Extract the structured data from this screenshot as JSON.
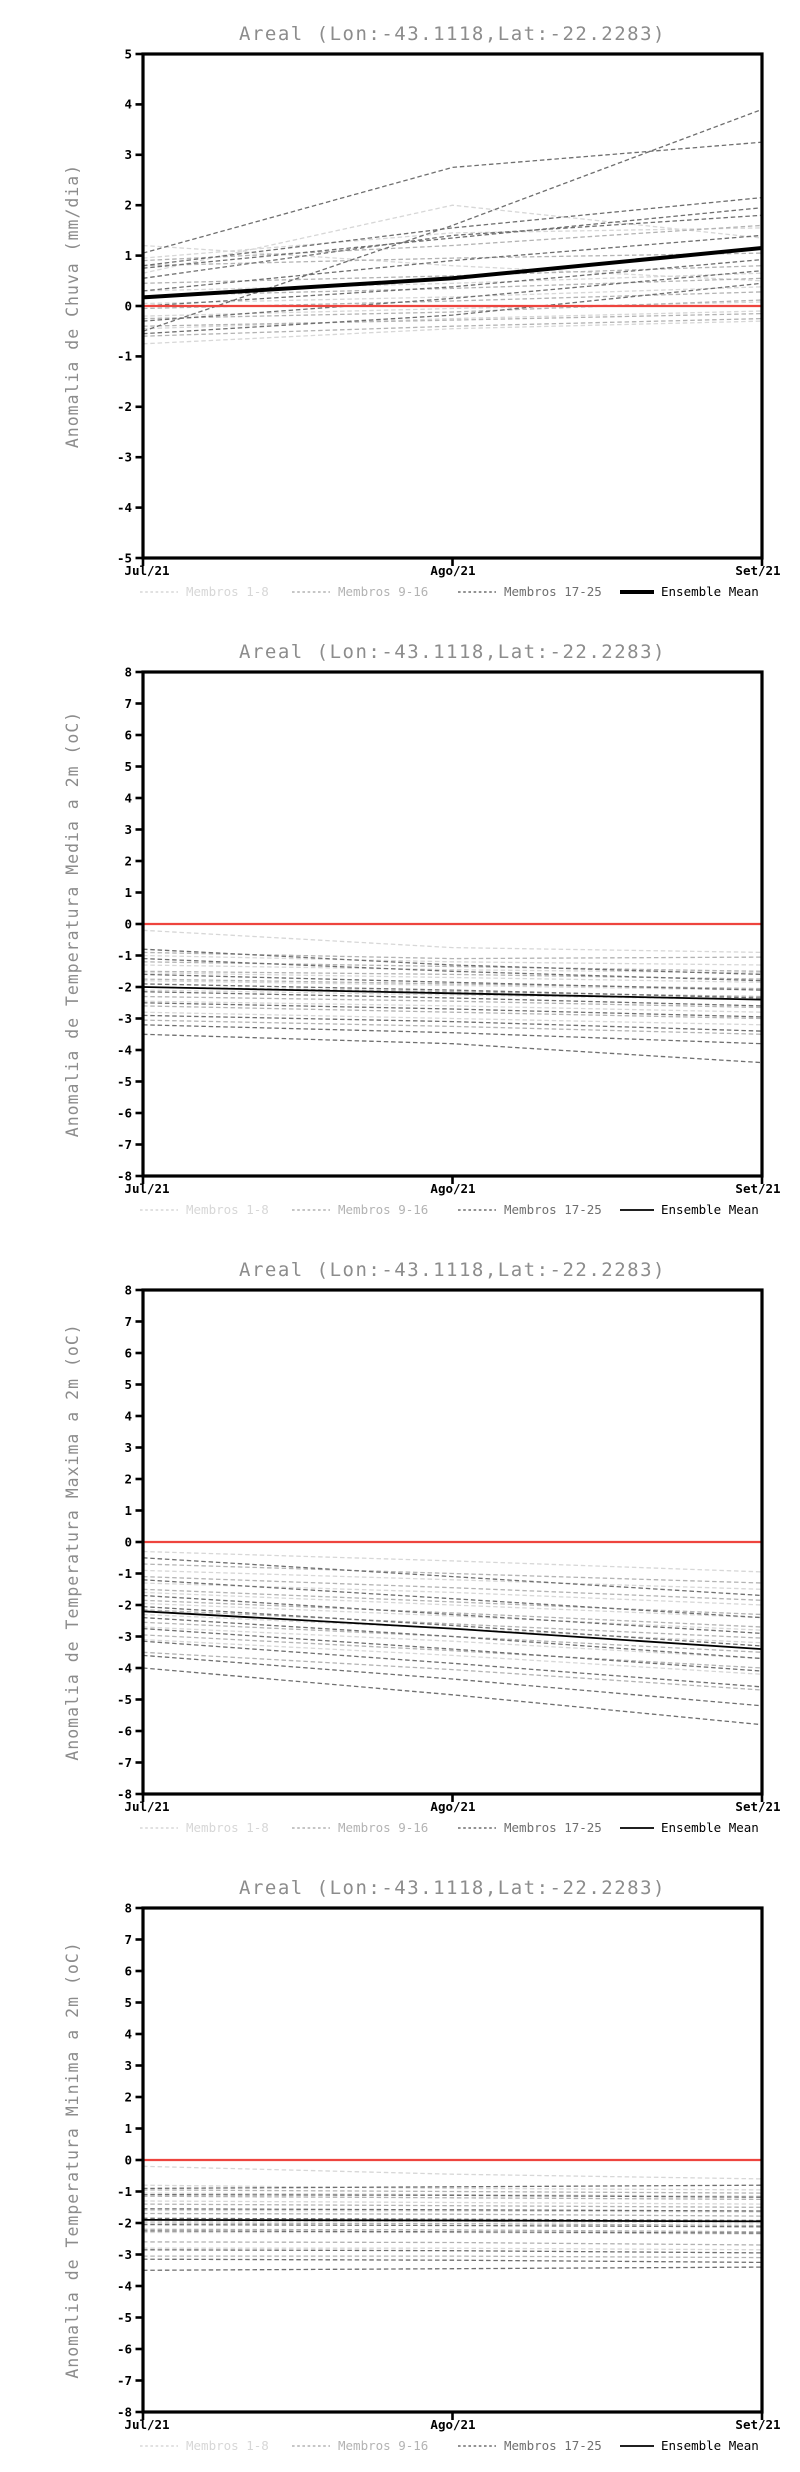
{
  "page": {
    "background": "#ffffff"
  },
  "colors": {
    "title_gray": "#8c8c8c",
    "axis_black": "#000000",
    "zero_line_red": "#ee443e",
    "group1_gray": "#d7d7d7",
    "group2_gray": "#b3b3b3",
    "group3_gray": "#6f6f6f",
    "ensemble_mean": "#000000"
  },
  "chart_data": [
    {
      "type": "line",
      "title": "Areal (Lon:-43.1118,Lat:-22.2283)",
      "ylabel": "Anomalia de Chuva (mm/dia)",
      "xlabel": "",
      "x_ticklabels": [
        "Jul/21",
        "Ago/21",
        "Set/21"
      ],
      "ylim": [
        -5,
        5
      ],
      "ytick_step": 1,
      "grid": false,
      "zero_line": true,
      "legend_position": "bottom",
      "mean_thick": true,
      "groups": [
        {
          "name": "Membros 1-8",
          "color": "#d7d7d7",
          "members": [
            [
              1.2,
              0.8,
              0.5
            ],
            [
              0.95,
              1.45,
              1.55
            ],
            [
              0.65,
              2.0,
              1.35
            ],
            [
              0.3,
              0.45,
              0.65
            ],
            [
              0.05,
              0.18,
              0.38
            ],
            [
              -0.2,
              -0.05,
              0.08
            ],
            [
              -0.45,
              -0.25,
              -0.1
            ],
            [
              -0.75,
              -0.45,
              -0.3
            ]
          ]
        },
        {
          "name": "Membros 9-16",
          "color": "#b3b3b3",
          "members": [
            [
              0.9,
              1.2,
              1.6
            ],
            [
              0.8,
              0.95,
              1.05
            ],
            [
              0.45,
              0.6,
              0.8
            ],
            [
              0.2,
              0.35,
              0.55
            ],
            [
              -0.05,
              0.1,
              0.28
            ],
            [
              -0.25,
              -0.12,
              0.12
            ],
            [
              -0.4,
              -0.28,
              -0.15
            ],
            [
              -0.6,
              -0.4,
              -0.25
            ]
          ]
        },
        {
          "name": "Membros 17-25",
          "color": "#6f6f6f",
          "members": [
            [
              1.05,
              2.75,
              3.25
            ],
            [
              -0.5,
              1.6,
              3.9
            ],
            [
              0.8,
              1.55,
              2.15
            ],
            [
              0.75,
              1.35,
              1.95
            ],
            [
              0.55,
              1.4,
              1.8
            ],
            [
              0.3,
              0.9,
              1.4
            ],
            [
              0.0,
              0.38,
              0.92
            ],
            [
              -0.3,
              0.15,
              0.7
            ],
            [
              -0.55,
              -0.18,
              0.45
            ]
          ]
        }
      ],
      "ensemble_mean": {
        "label": "Ensemble Mean",
        "color": "#000000",
        "values": [
          0.17,
          0.55,
          1.15
        ]
      }
    },
    {
      "type": "line",
      "title": "Areal (Lon:-43.1118,Lat:-22.2283)",
      "ylabel": "Anomalia de Temperatura Media a 2m (oC)",
      "xlabel": "",
      "x_ticklabels": [
        "Jul/21",
        "Ago/21",
        "Set/21"
      ],
      "ylim": [
        -8,
        8
      ],
      "ytick_step": 1,
      "grid": false,
      "zero_line": true,
      "legend_position": "bottom",
      "mean_thick": false,
      "groups": [
        {
          "name": "Membros 1-8",
          "color": "#d7d7d7",
          "members": [
            [
              -0.2,
              -0.75,
              -0.9
            ],
            [
              -1.0,
              -1.2,
              -1.3
            ],
            [
              -1.3,
              -1.45,
              -1.55
            ],
            [
              -1.55,
              -1.7,
              -1.85
            ],
            [
              -1.8,
              -1.95,
              -2.1
            ],
            [
              -2.1,
              -2.25,
              -2.4
            ],
            [
              -2.45,
              -2.6,
              -2.8
            ],
            [
              -2.8,
              -3.0,
              -3.2
            ]
          ]
        },
        {
          "name": "Membros 9-16",
          "color": "#b3b3b3",
          "members": [
            [
              -0.9,
              -1.1,
              -1.05
            ],
            [
              -1.2,
              -1.35,
              -1.5
            ],
            [
              -1.5,
              -1.6,
              -1.75
            ],
            [
              -1.75,
              -1.9,
              -2.05
            ],
            [
              -2.0,
              -2.15,
              -2.3
            ],
            [
              -2.3,
              -2.45,
              -2.65
            ],
            [
              -2.6,
              -2.8,
              -3.0
            ],
            [
              -3.05,
              -3.25,
              -3.5
            ]
          ]
        },
        {
          "name": "Membros 17-25",
          "color": "#6f6f6f",
          "members": [
            [
              -0.8,
              -1.3,
              -1.6
            ],
            [
              -1.1,
              -1.5,
              -1.8
            ],
            [
              -1.6,
              -1.85,
              -2.1
            ],
            [
              -1.9,
              -2.1,
              -2.35
            ],
            [
              -2.15,
              -2.35,
              -2.6
            ],
            [
              -2.5,
              -2.7,
              -2.95
            ],
            [
              -2.9,
              -3.1,
              -3.4
            ],
            [
              -3.2,
              -3.45,
              -3.8
            ],
            [
              -3.5,
              -3.8,
              -4.4
            ]
          ]
        }
      ],
      "ensemble_mean": {
        "label": "Ensemble Mean",
        "color": "#000000",
        "values": [
          -2.0,
          -2.2,
          -2.4
        ]
      }
    },
    {
      "type": "line",
      "title": "Areal (Lon:-43.1118,Lat:-22.2283)",
      "ylabel": "Anomalia de Temperatura Maxima a 2m (oC)",
      "xlabel": "",
      "x_ticklabels": [
        "Jul/21",
        "Ago/21",
        "Set/21"
      ],
      "ylim": [
        -8,
        8
      ],
      "ytick_step": 1,
      "grid": false,
      "zero_line": true,
      "legend_position": "bottom",
      "mean_thick": false,
      "groups": [
        {
          "name": "Membros 1-8",
          "color": "#d7d7d7",
          "members": [
            [
              -0.3,
              -0.6,
              -0.95
            ],
            [
              -0.9,
              -1.2,
              -1.5
            ],
            [
              -1.3,
              -1.6,
              -2.0
            ],
            [
              -1.6,
              -2.0,
              -2.4
            ],
            [
              -1.95,
              -2.35,
              -2.8
            ],
            [
              -2.3,
              -2.75,
              -3.2
            ],
            [
              -2.7,
              -3.15,
              -3.7
            ],
            [
              -3.1,
              -3.6,
              -4.2
            ]
          ]
        },
        {
          "name": "Membros 9-16",
          "color": "#b3b3b3",
          "members": [
            [
              -0.7,
              -1.0,
              -1.3
            ],
            [
              -1.1,
              -1.45,
              -1.85
            ],
            [
              -1.5,
              -1.9,
              -2.3
            ],
            [
              -1.85,
              -2.25,
              -2.7
            ],
            [
              -2.15,
              -2.6,
              -3.05
            ],
            [
              -2.55,
              -3.0,
              -3.5
            ],
            [
              -2.95,
              -3.45,
              -4.0
            ],
            [
              -3.5,
              -4.05,
              -4.7
            ]
          ]
        },
        {
          "name": "Membros 17-25",
          "color": "#6f6f6f",
          "members": [
            [
              -0.5,
              -1.1,
              -1.7
            ],
            [
              -1.2,
              -1.8,
              -2.4
            ],
            [
              -1.7,
              -2.3,
              -2.9
            ],
            [
              -2.05,
              -2.65,
              -3.3
            ],
            [
              -2.4,
              -3.0,
              -3.7
            ],
            [
              -2.75,
              -3.4,
              -4.1
            ],
            [
              -3.15,
              -3.85,
              -4.6
            ],
            [
              -3.6,
              -4.35,
              -5.2
            ],
            [
              -4.0,
              -4.85,
              -5.8
            ]
          ]
        }
      ],
      "ensemble_mean": {
        "label": "Ensemble Mean",
        "color": "#000000",
        "values": [
          -2.2,
          -2.75,
          -3.4
        ]
      }
    },
    {
      "type": "line",
      "title": "Areal (Lon:-43.1118,Lat:-22.2283)",
      "ylabel": "Anomalia de Temperatura Minima a 2m (oC)",
      "xlabel": "",
      "x_ticklabels": [
        "Jul/21",
        "Ago/21",
        "Set/21"
      ],
      "ylim": [
        -8,
        8
      ],
      "ytick_step": 1,
      "grid": false,
      "zero_line": true,
      "legend_position": "bottom",
      "mean_thick": false,
      "groups": [
        {
          "name": "Membros 1-8",
          "color": "#d7d7d7",
          "members": [
            [
              -0.2,
              -0.45,
              -0.6
            ],
            [
              -0.8,
              -0.9,
              -0.95
            ],
            [
              -1.05,
              -1.1,
              -1.15
            ],
            [
              -1.3,
              -1.35,
              -1.4
            ],
            [
              -1.6,
              -1.62,
              -1.65
            ],
            [
              -1.95,
              -1.95,
              -2.0
            ],
            [
              -2.3,
              -2.3,
              -2.35
            ],
            [
              -2.8,
              -2.8,
              -2.85
            ]
          ]
        },
        {
          "name": "Membros 9-16",
          "color": "#b3b3b3",
          "members": [
            [
              -0.95,
              -1.0,
              -1.05
            ],
            [
              -1.15,
              -1.2,
              -1.25
            ],
            [
              -1.4,
              -1.45,
              -1.5
            ],
            [
              -1.7,
              -1.72,
              -1.78
            ],
            [
              -2.0,
              -2.02,
              -2.08
            ],
            [
              -2.2,
              -2.22,
              -2.28
            ],
            [
              -2.6,
              -2.62,
              -2.7
            ],
            [
              -3.05,
              -3.05,
              -3.1
            ]
          ]
        },
        {
          "name": "Membros 17-25",
          "color": "#6f6f6f",
          "members": [
            [
              -0.9,
              -0.85,
              -0.8
            ],
            [
              -1.1,
              -1.12,
              -1.18
            ],
            [
              -1.55,
              -1.58,
              -1.62
            ],
            [
              -1.85,
              -1.88,
              -1.92
            ],
            [
              -2.05,
              -2.08,
              -2.12
            ],
            [
              -2.25,
              -2.28,
              -2.32
            ],
            [
              -2.85,
              -2.88,
              -2.95
            ],
            [
              -3.15,
              -3.18,
              -3.25
            ],
            [
              -3.5,
              -3.45,
              -3.4
            ]
          ]
        }
      ],
      "ensemble_mean": {
        "label": "Ensemble Mean",
        "color": "#000000",
        "values": [
          -1.9,
          -1.92,
          -1.95
        ]
      }
    }
  ]
}
